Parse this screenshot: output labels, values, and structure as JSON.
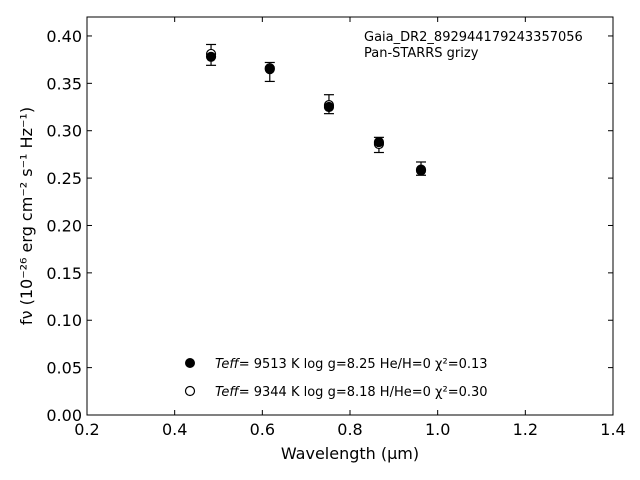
{
  "chart_data": {
    "type": "scatter",
    "xlabel": "Wavelength (μm)",
    "ylabel": "fν (10⁻²⁶ erg cm⁻² s⁻¹ Hz⁻¹)",
    "xlim": [
      0.2,
      1.4
    ],
    "ylim": [
      0.0,
      0.42
    ],
    "xticks": [
      "0.2",
      "0.4",
      "0.6",
      "0.8",
      "1.0",
      "1.2",
      "1.4"
    ],
    "yticks": [
      "0.00",
      "0.05",
      "0.10",
      "0.15",
      "0.20",
      "0.25",
      "0.30",
      "0.35",
      "0.40"
    ],
    "grid": false,
    "annotation": [
      "Gaia_DR2_892944179243357056",
      "Pan-STARRS grizy"
    ],
    "observed": {
      "x": [
        0.483,
        0.617,
        0.752,
        0.866,
        0.962
      ],
      "y": [
        0.38,
        0.362,
        0.328,
        0.285,
        0.26
      ],
      "yerr": [
        0.011,
        0.01,
        0.01,
        0.008,
        0.007
      ]
    },
    "series": [
      {
        "name": "Teff= 9513 K log g=8.25 He/H=0 χ²=0.13",
        "marker": "filled-circle",
        "x": [
          0.483,
          0.617,
          0.752,
          0.866,
          0.962
        ],
        "y": [
          0.378,
          0.365,
          0.325,
          0.288,
          0.258
        ]
      },
      {
        "name": "Teff= 9344 K log g=8.18 H/He=0 χ²=0.30",
        "marker": "open-circle",
        "x": [
          0.483,
          0.617,
          0.752,
          0.866,
          0.962
        ],
        "y": [
          0.381,
          0.366,
          0.327,
          0.286,
          0.259
        ]
      }
    ],
    "legend": {
      "placement": "bottom-center",
      "entries": [
        {
          "marker": "filled-circle",
          "teff_label": "Teff",
          "text": "=  9513 K  log g=8.25  He/H=0  χ²=0.13"
        },
        {
          "marker": "open-circle",
          "teff_label": "Teff",
          "text": "=  9344 K  log g=8.18  H/He=0  χ²=0.30"
        }
      ]
    },
    "colors": {
      "marker": "#000000",
      "errorbar": "#000000",
      "axes": "#000000"
    }
  }
}
